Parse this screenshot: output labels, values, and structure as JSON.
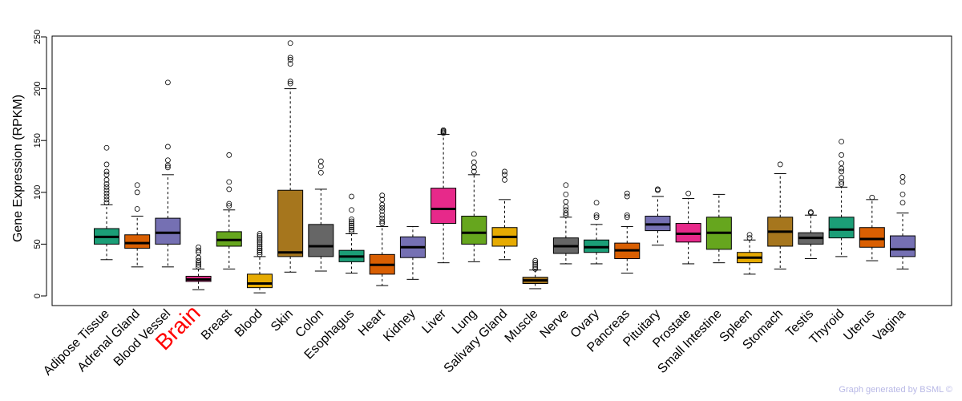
{
  "chart_data": {
    "type": "boxplot",
    "title": "",
    "xlabel": "",
    "ylabel": "Gene Expression (RPKM)",
    "ylim": [
      0,
      250
    ],
    "yticks": [
      0,
      50,
      100,
      150,
      200,
      250
    ],
    "highlight": "Brain",
    "highlight_color": "#ff0000",
    "categories": [
      {
        "name": "Adipose Tissue",
        "color": "#1b9e77",
        "whisker_low": 35,
        "q1": 50,
        "median": 57,
        "q3": 65,
        "whisker_high": 88,
        "outliers": [
          90,
          93,
          96,
          99,
          102,
          105,
          108,
          112,
          117,
          120,
          127,
          143
        ]
      },
      {
        "name": "Adrenal Gland",
        "color": "#d95f02",
        "whisker_low": 28,
        "q1": 46,
        "median": 51,
        "q3": 59,
        "whisker_high": 77,
        "outliers": [
          84,
          100,
          107
        ]
      },
      {
        "name": "Blood Vessel",
        "color": "#7570b3",
        "whisker_low": 28,
        "q1": 50,
        "median": 61,
        "q3": 75,
        "whisker_high": 117,
        "outliers": [
          124,
          126,
          131,
          144,
          206
        ]
      },
      {
        "name": "Brain",
        "color": "#e7298a",
        "whisker_low": 6,
        "q1": 14,
        "median": 16,
        "q3": 19,
        "whisker_high": 26,
        "outliers": [
          28,
          30,
          32,
          34,
          37,
          42,
          44,
          47
        ]
      },
      {
        "name": "Breast",
        "color": "#66a61e",
        "whisker_low": 26,
        "q1": 48,
        "median": 54,
        "q3": 62,
        "whisker_high": 83,
        "outliers": [
          87,
          89,
          103,
          110,
          136
        ]
      },
      {
        "name": "Blood",
        "color": "#e6ab02",
        "whisker_low": 3,
        "q1": 8,
        "median": 12,
        "q3": 21,
        "whisker_high": 38,
        "outliers": [
          40,
          42,
          44,
          46,
          48,
          50,
          52,
          54,
          56,
          58,
          60
        ]
      },
      {
        "name": "Skin",
        "color": "#a6761d",
        "whisker_low": 23,
        "q1": 38,
        "median": 42,
        "q3": 102,
        "whisker_high": 200,
        "outliers": [
          205,
          207,
          224,
          228,
          230,
          244
        ]
      },
      {
        "name": "Colon",
        "color": "#666666",
        "whisker_low": 24,
        "q1": 38,
        "median": 48,
        "q3": 69,
        "whisker_high": 103,
        "outliers": [
          119,
          125,
          130
        ]
      },
      {
        "name": "Esophagus",
        "color": "#1b9e77",
        "whisker_low": 22,
        "q1": 33,
        "median": 38,
        "q3": 44,
        "whisker_high": 60,
        "outliers": [
          62,
          64,
          66,
          68,
          70,
          72,
          74,
          83,
          96
        ]
      },
      {
        "name": "Heart",
        "color": "#d95f02",
        "whisker_low": 10,
        "q1": 21,
        "median": 30,
        "q3": 40,
        "whisker_high": 67,
        "outliers": [
          70,
          72,
          75,
          78,
          82,
          85,
          88,
          93,
          97
        ]
      },
      {
        "name": "Kidney",
        "color": "#7570b3",
        "whisker_low": 16,
        "q1": 37,
        "median": 47,
        "q3": 57,
        "whisker_high": 67,
        "outliers": []
      },
      {
        "name": "Liver",
        "color": "#e7298a",
        "whisker_low": 32,
        "q1": 70,
        "median": 84,
        "q3": 104,
        "whisker_high": 156,
        "outliers": [
          157,
          158,
          159,
          160
        ]
      },
      {
        "name": "Lung",
        "color": "#66a61e",
        "whisker_low": 33,
        "q1": 50,
        "median": 61,
        "q3": 77,
        "whisker_high": 117,
        "outliers": [
          120,
          124,
          129,
          137
        ]
      },
      {
        "name": "Salivary Gland",
        "color": "#e6ab02",
        "whisker_low": 35,
        "q1": 48,
        "median": 57,
        "q3": 66,
        "whisker_high": 93,
        "outliers": [
          112,
          117,
          120
        ]
      },
      {
        "name": "Muscle",
        "color": "#a6761d",
        "whisker_low": 7,
        "q1": 12,
        "median": 15,
        "q3": 18,
        "whisker_high": 25,
        "outliers": [
          26,
          28,
          30,
          32,
          34
        ]
      },
      {
        "name": "Nerve",
        "color": "#666666",
        "whisker_low": 31,
        "q1": 41,
        "median": 48,
        "q3": 56,
        "whisker_high": 76,
        "outliers": [
          78,
          80,
          83,
          86,
          91,
          98,
          107
        ]
      },
      {
        "name": "Ovary",
        "color": "#1b9e77",
        "whisker_low": 31,
        "q1": 42,
        "median": 47,
        "q3": 54,
        "whisker_high": 69,
        "outliers": [
          76,
          78,
          90
        ]
      },
      {
        "name": "Pancreas",
        "color": "#d95f02",
        "whisker_low": 22,
        "q1": 36,
        "median": 44,
        "q3": 51,
        "whisker_high": 67,
        "outliers": [
          76,
          78,
          96,
          99
        ]
      },
      {
        "name": "Pituitary",
        "color": "#7570b3",
        "whisker_low": 49,
        "q1": 63,
        "median": 69,
        "q3": 77,
        "whisker_high": 96,
        "outliers": [
          102,
          103
        ]
      },
      {
        "name": "Prostate",
        "color": "#e7298a",
        "whisker_low": 31,
        "q1": 52,
        "median": 60,
        "q3": 70,
        "whisker_high": 94,
        "outliers": [
          99
        ]
      },
      {
        "name": "Small Intestine",
        "color": "#66a61e",
        "whisker_low": 32,
        "q1": 45,
        "median": 61,
        "q3": 76,
        "whisker_high": 98,
        "outliers": []
      },
      {
        "name": "Spleen",
        "color": "#e6ab02",
        "whisker_low": 21,
        "q1": 32,
        "median": 37,
        "q3": 42,
        "whisker_high": 54,
        "outliers": [
          56,
          59
        ]
      },
      {
        "name": "Stomach",
        "color": "#a6761d",
        "whisker_low": 26,
        "q1": 48,
        "median": 62,
        "q3": 76,
        "whisker_high": 118,
        "outliers": [
          127
        ]
      },
      {
        "name": "Testis",
        "color": "#666666",
        "whisker_low": 36,
        "q1": 50,
        "median": 56,
        "q3": 61,
        "whisker_high": 78,
        "outliers": [
          80,
          81
        ]
      },
      {
        "name": "Thyroid",
        "color": "#1b9e77",
        "whisker_low": 38,
        "q1": 56,
        "median": 64,
        "q3": 76,
        "whisker_high": 105,
        "outliers": [
          108,
          110,
          114,
          120,
          123,
          128,
          136,
          149
        ]
      },
      {
        "name": "Uterus",
        "color": "#d95f02",
        "whisker_low": 34,
        "q1": 47,
        "median": 55,
        "q3": 66,
        "whisker_high": 93,
        "outliers": [
          95
        ]
      },
      {
        "name": "Vagina",
        "color": "#7570b3",
        "whisker_low": 26,
        "q1": 38,
        "median": 45,
        "q3": 58,
        "whisker_high": 80,
        "outliers": [
          90,
          98,
          110,
          115
        ]
      }
    ]
  },
  "footer": {
    "credit": "Graph generated by BSML ©"
  }
}
